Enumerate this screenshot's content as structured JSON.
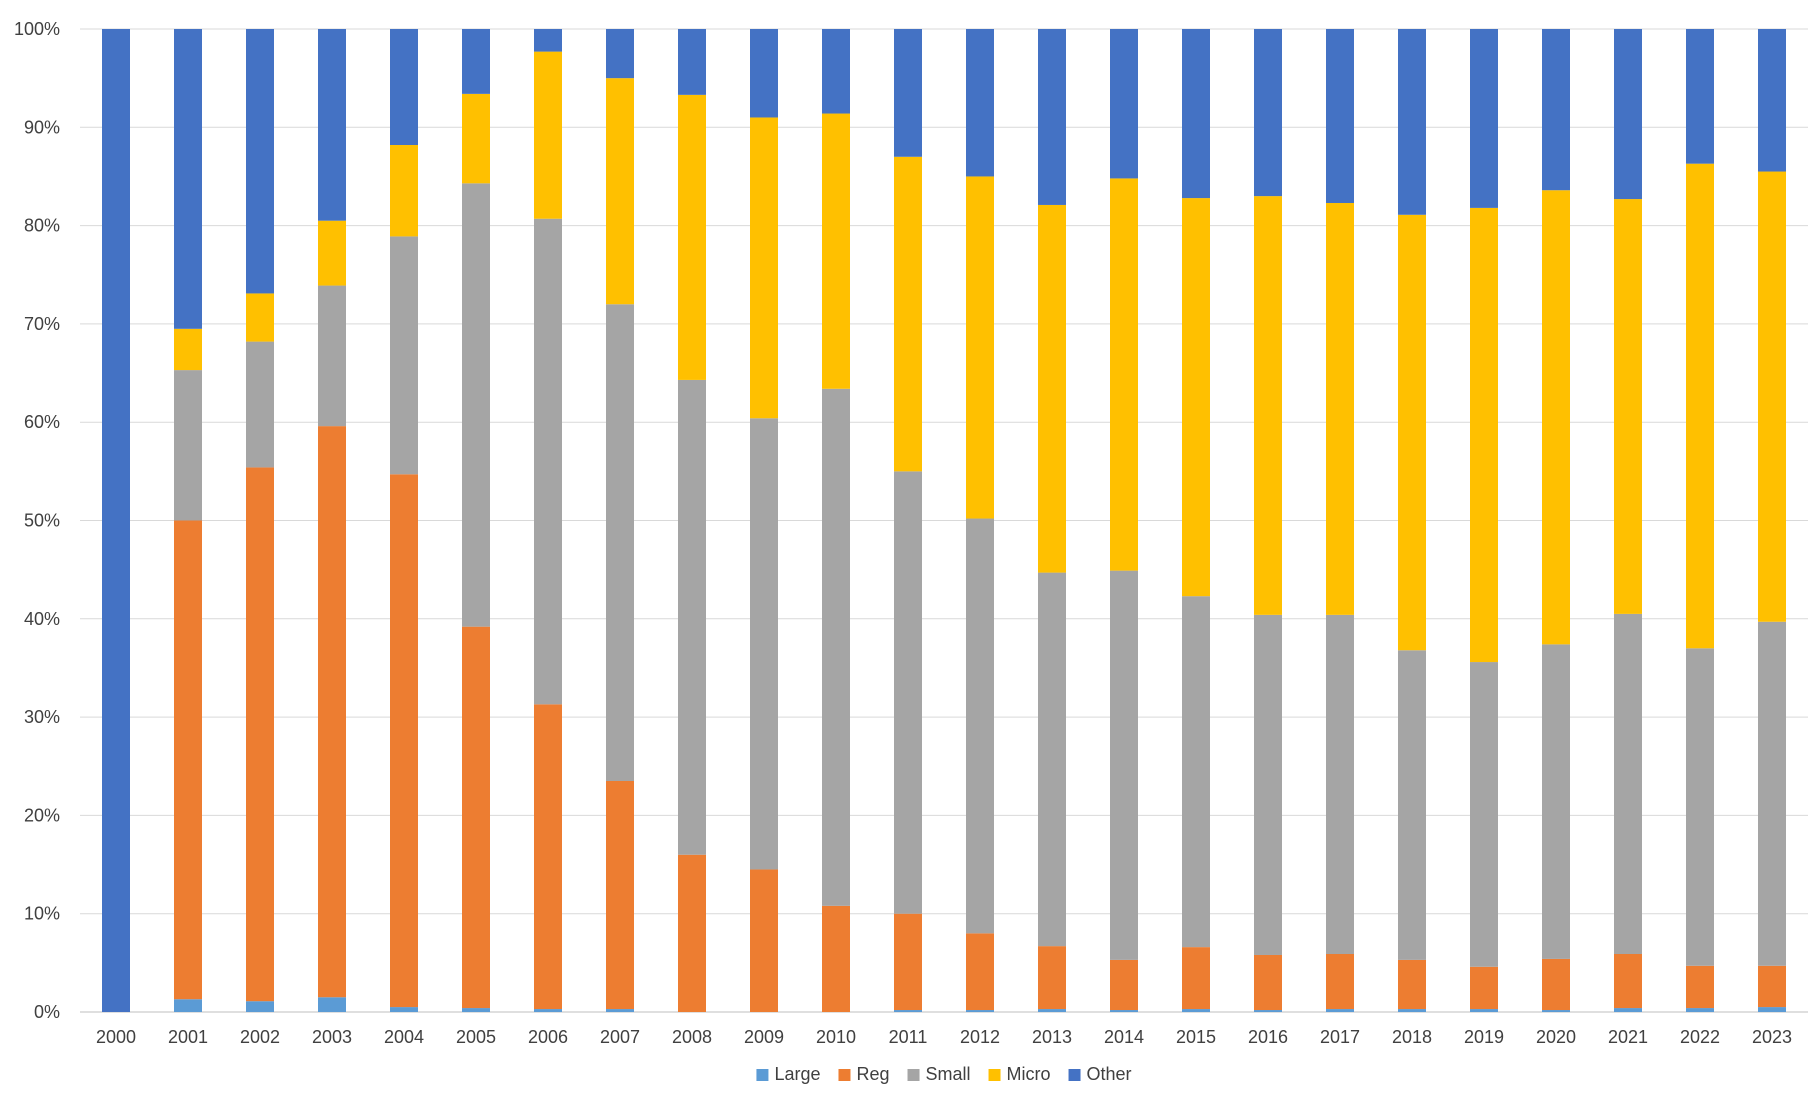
{
  "chart_data": {
    "type": "bar",
    "stacked": true,
    "percent_stacked": true,
    "title": "",
    "xlabel": "",
    "ylabel": "",
    "ylim": [
      0,
      100
    ],
    "y_ticks": [
      "0%",
      "10%",
      "20%",
      "30%",
      "40%",
      "50%",
      "60%",
      "70%",
      "80%",
      "90%",
      "100%"
    ],
    "grid": true,
    "legend_position": "bottom",
    "categories": [
      "2000",
      "2001",
      "2002",
      "2003",
      "2004",
      "2005",
      "2006",
      "2007",
      "2008",
      "2009",
      "2010",
      "2011",
      "2012",
      "2013",
      "2014",
      "2015",
      "2016",
      "2017",
      "2018",
      "2019",
      "2020",
      "2021",
      "2022",
      "2023"
    ],
    "series": [
      {
        "name": "Large",
        "color": "#5B9BD5",
        "values": [
          0,
          1.3,
          1.1,
          1.5,
          0.5,
          0.4,
          0.3,
          0.3,
          0.0,
          0.0,
          0.0,
          0.2,
          0.2,
          0.3,
          0.2,
          0.3,
          0.2,
          0.3,
          0.3,
          0.3,
          0.2,
          0.4,
          0.4,
          0.5
        ]
      },
      {
        "name": "Reg",
        "color": "#ED7D31",
        "values": [
          0,
          48.7,
          54.3,
          58.1,
          54.2,
          38.8,
          31.0,
          23.2,
          16.0,
          14.5,
          10.8,
          9.8,
          7.8,
          6.4,
          5.1,
          6.3,
          5.6,
          5.6,
          5.0,
          4.3,
          5.2,
          5.5,
          4.3,
          4.2
        ]
      },
      {
        "name": "Small",
        "color": "#A5A5A5",
        "values": [
          0,
          15.3,
          12.8,
          14.3,
          24.2,
          45.1,
          49.4,
          48.5,
          48.3,
          45.9,
          52.6,
          45.0,
          42.2,
          38.0,
          39.6,
          35.7,
          34.6,
          34.5,
          31.5,
          31.0,
          32.0,
          34.6,
          32.3,
          35.0
        ]
      },
      {
        "name": "Micro",
        "color": "#FFC000",
        "values": [
          0,
          4.2,
          4.9,
          6.6,
          9.3,
          9.1,
          17.0,
          23.0,
          29.0,
          30.6,
          28.0,
          32.0,
          34.8,
          37.4,
          39.9,
          40.5,
          42.6,
          41.9,
          44.3,
          46.2,
          46.2,
          42.2,
          49.3,
          45.8
        ]
      },
      {
        "name": "Other",
        "color": "#4472C4",
        "values": [
          100,
          30.5,
          26.9,
          19.5,
          11.8,
          6.6,
          2.3,
          5.0,
          6.7,
          9.0,
          8.6,
          13.0,
          15.0,
          17.9,
          15.2,
          17.2,
          17.0,
          17.7,
          18.9,
          18.2,
          16.4,
          17.3,
          13.7,
          14.5
        ]
      }
    ]
  }
}
